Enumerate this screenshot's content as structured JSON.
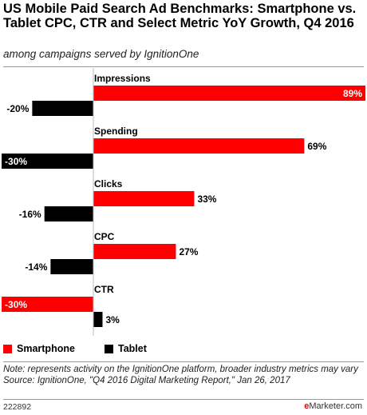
{
  "header": {
    "title": "US Mobile Paid Search Ad Benchmarks: Smartphone vs. Tablet CPC, CTR and Select Metric YoY Growth, Q4 2016",
    "subtitle": "among campaigns served by IgnitionOne"
  },
  "colors": {
    "smartphone": "#ff0000",
    "tablet": "#000000"
  },
  "chart_data": {
    "type": "bar",
    "orientation": "horizontal",
    "title": "US Mobile Paid Search Ad Benchmarks: Smartphone vs. Tablet CPC, CTR and Select Metric YoY Growth, Q4 2016",
    "subtitle": "among campaigns served by IgnitionOne",
    "unit": "%",
    "categories": [
      "Impressions",
      "Spending",
      "Clicks",
      "CPC",
      "CTR"
    ],
    "series": [
      {
        "name": "Smartphone",
        "values": [
          89,
          69,
          33,
          27,
          -30
        ],
        "labels": [
          "89%",
          "69%",
          "33%",
          "27%",
          "-30%"
        ]
      },
      {
        "name": "Tablet",
        "values": [
          -20,
          -30,
          -16,
          -14,
          3
        ],
        "labels": [
          "-20%",
          "-30%",
          "-16%",
          "-14%",
          "3%"
        ]
      }
    ],
    "xlim": [
      -30,
      89
    ],
    "legend_position": "bottom-left",
    "grid": false
  },
  "legend": {
    "smartphone_label": "Smartphone",
    "tablet_label": "Tablet"
  },
  "footnote": {
    "note": "Note: represents activity on the IgnitionOne platform, broader industry metrics may vary",
    "source": "Source: IgnitionOne, \"Q4 2016 Digital Marketing Report,\" Jan 26, 2017"
  },
  "footer": {
    "chart_id": "222892",
    "logo_prefix": "e",
    "logo_rest": "Marketer",
    "logo_suffix": ".com"
  }
}
